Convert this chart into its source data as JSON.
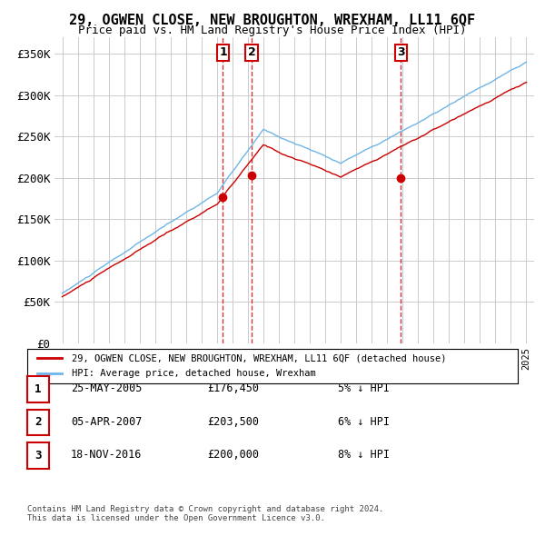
{
  "title": "29, OGWEN CLOSE, NEW BROUGHTON, WREXHAM, LL11 6QF",
  "subtitle": "Price paid vs. HM Land Registry's House Price Index (HPI)",
  "hpi_color": "#6eb6e8",
  "price_color": "#cc0000",
  "sale_color": "#cc0000",
  "vline_color": "#cc0000",
  "grid_color": "#cccccc",
  "bg_color": "#ffffff",
  "plot_bg_color": "#ffffff",
  "ylim": [
    0,
    370000
  ],
  "yticks": [
    0,
    50000,
    100000,
    150000,
    200000,
    250000,
    300000,
    350000
  ],
  "ytick_labels": [
    "£0",
    "£50K",
    "£100K",
    "£150K",
    "£200K",
    "£250K",
    "£300K",
    "£350K"
  ],
  "xlim_start": 1994.5,
  "xlim_end": 2025.5,
  "sale_dates": [
    2005.39,
    2007.26,
    2016.89
  ],
  "sale_prices": [
    176450,
    203500,
    200000
  ],
  "sale_labels": [
    "1",
    "2",
    "3"
  ],
  "legend_label_red": "29, OGWEN CLOSE, NEW BROUGHTON, WREXHAM, LL11 6QF (detached house)",
  "legend_label_blue": "HPI: Average price, detached house, Wrexham",
  "table_rows": [
    {
      "num": "1",
      "date": "25-MAY-2005",
      "price": "£176,450",
      "pct": "5% ↓ HPI"
    },
    {
      "num": "2",
      "date": "05-APR-2007",
      "price": "£203,500",
      "pct": "6% ↓ HPI"
    },
    {
      "num": "3",
      "date": "18-NOV-2016",
      "price": "£200,000",
      "pct": "8% ↓ HPI"
    }
  ],
  "footer": "Contains HM Land Registry data © Crown copyright and database right 2024.\nThis data is licensed under the Open Government Licence v3.0."
}
